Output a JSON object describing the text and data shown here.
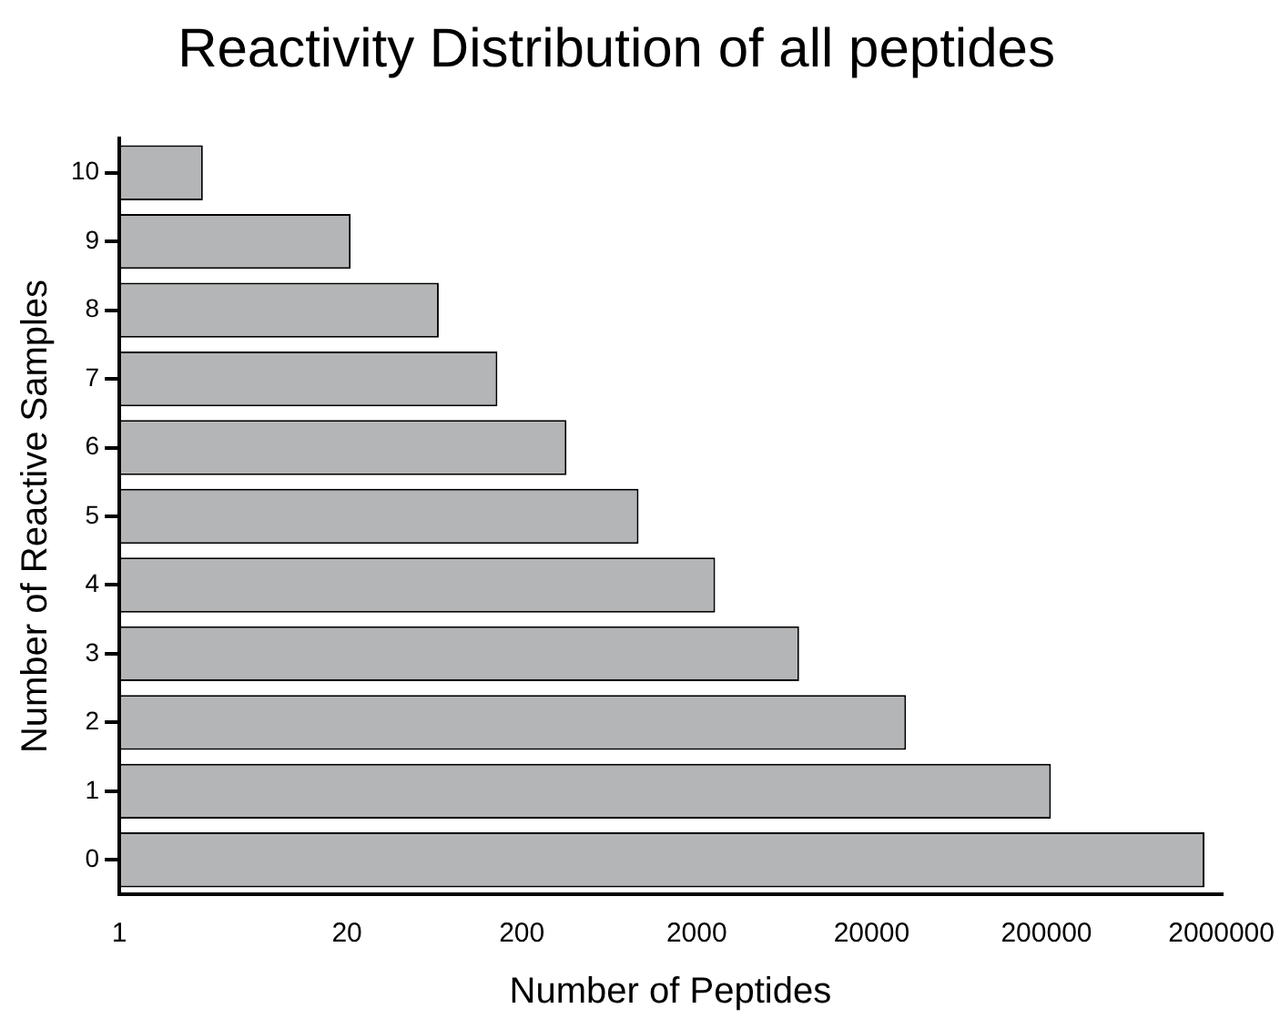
{
  "chart_data": {
    "type": "bar",
    "orientation": "horizontal",
    "title": "Reactivity Distribution of all peptides",
    "xlabel": "Number of Peptides",
    "ylabel": "Number of Reactive Samples",
    "categories": [
      "10",
      "9",
      "8",
      "7",
      "6",
      "5",
      "4",
      "3",
      "2",
      "1",
      "0"
    ],
    "values": [
      3,
      21,
      67,
      145,
      360,
      930,
      2550,
      7700,
      31500,
      212000,
      1600000
    ],
    "color": "#b3b5b7",
    "log": "x",
    "xlim": [
      1,
      2000000
    ],
    "xticks": [
      1,
      20,
      200,
      2000,
      20000,
      200000,
      2000000
    ],
    "grid": false,
    "legend": false
  }
}
